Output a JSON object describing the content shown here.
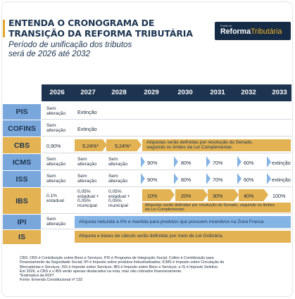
{
  "header": {
    "title_line1": "ENTENDA O CRONOGRAMA DE",
    "title_line2": "TRANSIÇÃO DA REFORMA TRIBUTÁRIA",
    "subtitle_line1": "Período de unificação dos tributos",
    "subtitle_line2": "será de 2026 até 2032",
    "logo_small": "Portal da",
    "logo_word1": "Reforma",
    "logo_word2": "Tributária",
    "accent_color": "#e2a526",
    "navy": "#1c3450"
  },
  "years": [
    "2026",
    "2027",
    "2028",
    "2029",
    "2030",
    "2031",
    "2032",
    "2033"
  ],
  "rows": {
    "pis": {
      "label": "PIS",
      "y2026": [
        "Sem",
        "alteração"
      ],
      "y2027": "Extinção"
    },
    "cofins": {
      "label": "COFINS",
      "y2026": [
        "Sem",
        "alteração"
      ],
      "y2027": "Extinção"
    },
    "cbs": {
      "label": "CBS",
      "y2026": "0,90%",
      "y2027": "9,24%*",
      "y2028": "9,24%*",
      "band": [
        "Alíquotas serão definidas por resolução do Senado,",
        "seguindo os limites da Lei Complementar."
      ]
    },
    "icms": {
      "label": "ICMS",
      "y2026": [
        "Sem",
        "alteração"
      ],
      "y2027": [
        "Sem",
        "alteração"
      ],
      "y2028": [
        "Sem",
        "alteração"
      ],
      "y2029": "90%",
      "y2030": "80%",
      "y2031": "70%",
      "y2032": "60%",
      "y2033": "extinção"
    },
    "iss": {
      "label": "ISS",
      "y2026": [
        "Sem",
        "alteração"
      ],
      "y2027": [
        "Sem",
        "alteração"
      ],
      "y2028": [
        "Sem",
        "alteração"
      ],
      "y2029": "90%",
      "y2030": "80%",
      "y2031": "70%",
      "y2032": "60%",
      "y2033": "extinção"
    },
    "ibs": {
      "label": "IBS",
      "y2026": [
        "0,1%",
        "estadual"
      ],
      "y2027": [
        "0,05%",
        "estadual +",
        "0,05%",
        "municipal"
      ],
      "y2028": [
        "0,05%",
        "estadual +",
        "0,05%",
        "municipal"
      ],
      "y2029": "10%",
      "y2030": "20%",
      "y2031": "30%",
      "y2032": "40%",
      "y2033": "100%",
      "band": [
        "Alíquotas serão definidas por resolução do Senado, seguindo os limites",
        "da Lei Complementar."
      ]
    },
    "ipi": {
      "label": "IPI",
      "y2026": [
        "Sem",
        "alteração"
      ],
      "band": "Alíquota reduzida a 0% e mantida para produtos que possuem incentivos na Zona Franca"
    },
    "is": {
      "label": "IS",
      "band": "Alíquota e bases de cálculo serão definidas por meio de Lei Ordinária."
    }
  },
  "footnotes": [
    "CBS: CBS é Contribuição sobre Bens e Serviços; PIS é Programa de Integração Social; Cofins é Contribuição para",
    "Financiamento da Seguridade Social; IPI é Imposto sobre produtos Industrializados; ICMS é Imposto sobre Circulação de",
    "Mercadorias e Serviços; ISS é Imposto sobre Serviços; IBS é Imposto sobre Bens e Serviços; e IS é Imposto Seletivo.",
    "Em 2026, a CBS e o IBS serão apenas destacados na nota, mas não cobrados financeiramente.",
    "*Estimativa da ROIT",
    "Fonte: Emenda Constitucional nº 132"
  ]
}
